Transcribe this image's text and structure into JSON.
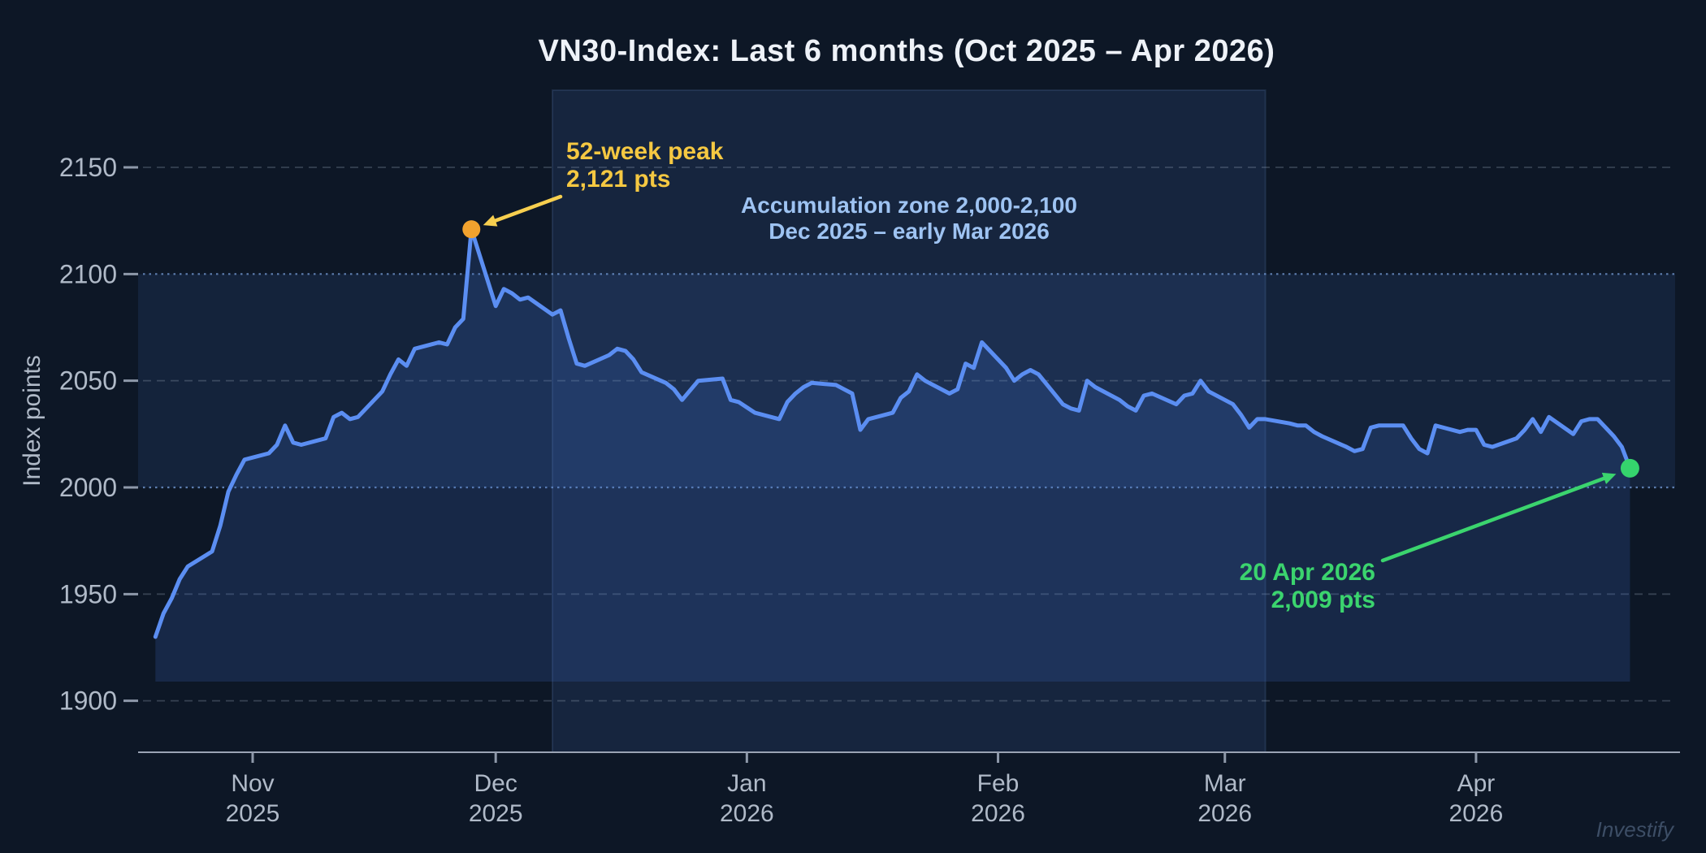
{
  "title": "VN30-Index: Last 6 months (Oct 2025 – Apr 2026)",
  "watermark": "Investify",
  "colors": {
    "background": "#0d1726",
    "line": "#5b8ef2",
    "area_fill": "rgba(58,104,190,0.22)",
    "hband_fill": "rgba(72,118,200,0.13)",
    "vband_fill": "rgba(72,118,200,0.15)",
    "vband_stroke": "rgba(120,160,230,0.15)",
    "grid_dashed": "rgba(162,175,194,0.28)",
    "grid_dotted": "rgba(120,160,220,0.75)",
    "axis_spine": "#9aa3b4",
    "tick_mark": "#8e99aa",
    "tick_label": "#b0bac8",
    "title_color": "#eef2f8",
    "peak_text": "#f5c842",
    "peak_dot": "#f2a22e",
    "peak_arrow": "#f7cf4f",
    "latest_text": "#3bd46e",
    "latest_dot": "#35d46d",
    "zone_text": "#9ec3f2",
    "watermark_color": "#3d4e66"
  },
  "chart_data": {
    "type": "area",
    "title": "VN30-Index: Last 6 months (Oct 2025 – Apr 2026)",
    "xlabel": "",
    "ylabel": "Index points",
    "ylim": [
      1876,
      2186
    ],
    "x_range": [
      "2025-10-20",
      "2026-04-20"
    ],
    "y_ticks": [
      1900,
      1950,
      2000,
      2050,
      2100,
      2150
    ],
    "x_ticks": [
      {
        "month": "Nov",
        "year": "2025",
        "date": "2025-11-01"
      },
      {
        "month": "Dec",
        "year": "2025",
        "date": "2025-12-01"
      },
      {
        "month": "Jan",
        "year": "2026",
        "date": "2026-01-01"
      },
      {
        "month": "Feb",
        "year": "2026",
        "date": "2026-02-01"
      },
      {
        "month": "Mar",
        "year": "2026",
        "date": "2026-03-01"
      },
      {
        "month": "Apr",
        "year": "2026",
        "date": "2026-04-01"
      }
    ],
    "grid": "horizontal; dashed gray at 1900/1950/2050/2150, dotted blue at 2000/2100",
    "legend": "none",
    "area_baseline": 1909,
    "highlight_hband": {
      "from": 2000,
      "to": 2100
    },
    "highlight_vband": {
      "from": "2025-12-08",
      "to": "2026-03-06"
    },
    "annotations": {
      "peak": {
        "line1": "52-week peak",
        "line2": "2,121 pts",
        "date": "2025-11-28",
        "value": 2121
      },
      "latest": {
        "line1": "20 Apr 2026",
        "line2": "2,009 pts",
        "date": "2026-04-20",
        "value": 2009
      },
      "zone": {
        "line1": "Accumulation zone 2,000-2,100",
        "line2": "Dec 2025 – early Mar 2026"
      }
    },
    "series": [
      {
        "name": "VN30-Index",
        "points": [
          [
            "2025-10-20",
            1930
          ],
          [
            "2025-10-21",
            1941
          ],
          [
            "2025-10-22",
            1948
          ],
          [
            "2025-10-23",
            1957
          ],
          [
            "2025-10-24",
            1963
          ],
          [
            "2025-10-27",
            1970
          ],
          [
            "2025-10-28",
            1982
          ],
          [
            "2025-10-29",
            1998
          ],
          [
            "2025-10-30",
            2006
          ],
          [
            "2025-10-31",
            2013
          ],
          [
            "2025-11-03",
            2016
          ],
          [
            "2025-11-04",
            2020
          ],
          [
            "2025-11-05",
            2029
          ],
          [
            "2025-11-06",
            2021
          ],
          [
            "2025-11-07",
            2020
          ],
          [
            "2025-11-10",
            2023
          ],
          [
            "2025-11-11",
            2033
          ],
          [
            "2025-11-12",
            2035
          ],
          [
            "2025-11-13",
            2032
          ],
          [
            "2025-11-14",
            2033
          ],
          [
            "2025-11-17",
            2045
          ],
          [
            "2025-11-18",
            2053
          ],
          [
            "2025-11-19",
            2060
          ],
          [
            "2025-11-20",
            2057
          ],
          [
            "2025-11-21",
            2065
          ],
          [
            "2025-11-24",
            2068
          ],
          [
            "2025-11-25",
            2067
          ],
          [
            "2025-11-26",
            2075
          ],
          [
            "2025-11-27",
            2079
          ],
          [
            "2025-11-28",
            2121
          ],
          [
            "2025-12-01",
            2085
          ],
          [
            "2025-12-02",
            2093
          ],
          [
            "2025-12-03",
            2091
          ],
          [
            "2025-12-04",
            2088
          ],
          [
            "2025-12-05",
            2089
          ],
          [
            "2025-12-08",
            2081
          ],
          [
            "2025-12-09",
            2083
          ],
          [
            "2025-12-10",
            2070
          ],
          [
            "2025-12-11",
            2058
          ],
          [
            "2025-12-12",
            2057
          ],
          [
            "2025-12-15",
            2062
          ],
          [
            "2025-12-16",
            2065
          ],
          [
            "2025-12-17",
            2064
          ],
          [
            "2025-12-18",
            2060
          ],
          [
            "2025-12-19",
            2054
          ],
          [
            "2025-12-22",
            2049
          ],
          [
            "2025-12-23",
            2046
          ],
          [
            "2025-12-24",
            2041
          ],
          [
            "2025-12-26",
            2050
          ],
          [
            "2025-12-29",
            2051
          ],
          [
            "2025-12-30",
            2041
          ],
          [
            "2025-12-31",
            2040
          ],
          [
            "2026-01-02",
            2035
          ],
          [
            "2026-01-05",
            2032
          ],
          [
            "2026-01-06",
            2040
          ],
          [
            "2026-01-07",
            2044
          ],
          [
            "2026-01-08",
            2047
          ],
          [
            "2026-01-09",
            2049
          ],
          [
            "2026-01-12",
            2048
          ],
          [
            "2026-01-13",
            2046
          ],
          [
            "2026-01-14",
            2044
          ],
          [
            "2026-01-15",
            2027
          ],
          [
            "2026-01-16",
            2032
          ],
          [
            "2026-01-19",
            2035
          ],
          [
            "2026-01-20",
            2042
          ],
          [
            "2026-01-21",
            2045
          ],
          [
            "2026-01-22",
            2053
          ],
          [
            "2026-01-23",
            2050
          ],
          [
            "2026-01-26",
            2044
          ],
          [
            "2026-01-27",
            2046
          ],
          [
            "2026-01-28",
            2058
          ],
          [
            "2026-01-29",
            2056
          ],
          [
            "2026-01-30",
            2068
          ],
          [
            "2026-02-02",
            2056
          ],
          [
            "2026-02-03",
            2050
          ],
          [
            "2026-02-04",
            2053
          ],
          [
            "2026-02-05",
            2055
          ],
          [
            "2026-02-06",
            2053
          ],
          [
            "2026-02-09",
            2039
          ],
          [
            "2026-02-10",
            2037
          ],
          [
            "2026-02-11",
            2036
          ],
          [
            "2026-02-12",
            2050
          ],
          [
            "2026-02-13",
            2047
          ],
          [
            "2026-02-16",
            2041
          ],
          [
            "2026-02-17",
            2038
          ],
          [
            "2026-02-18",
            2036
          ],
          [
            "2026-02-19",
            2043
          ],
          [
            "2026-02-20",
            2044
          ],
          [
            "2026-02-23",
            2039
          ],
          [
            "2026-02-24",
            2043
          ],
          [
            "2026-02-25",
            2044
          ],
          [
            "2026-02-26",
            2050
          ],
          [
            "2026-02-27",
            2045
          ],
          [
            "2026-03-02",
            2039
          ],
          [
            "2026-03-03",
            2034
          ],
          [
            "2026-03-04",
            2028
          ],
          [
            "2026-03-05",
            2032
          ],
          [
            "2026-03-06",
            2032
          ],
          [
            "2026-03-09",
            2030
          ],
          [
            "2026-03-10",
            2029
          ],
          [
            "2026-03-11",
            2029
          ],
          [
            "2026-03-12",
            2026
          ],
          [
            "2026-03-13",
            2024
          ],
          [
            "2026-03-16",
            2019
          ],
          [
            "2026-03-17",
            2017
          ],
          [
            "2026-03-18",
            2018
          ],
          [
            "2026-03-19",
            2028
          ],
          [
            "2026-03-20",
            2029
          ],
          [
            "2026-03-23",
            2029
          ],
          [
            "2026-03-24",
            2023
          ],
          [
            "2026-03-25",
            2018
          ],
          [
            "2026-03-26",
            2016
          ],
          [
            "2026-03-27",
            2029
          ],
          [
            "2026-03-30",
            2026
          ],
          [
            "2026-03-31",
            2027
          ],
          [
            "2026-04-01",
            2027
          ],
          [
            "2026-04-02",
            2020
          ],
          [
            "2026-04-03",
            2019
          ],
          [
            "2026-04-06",
            2023
          ],
          [
            "2026-04-07",
            2027
          ],
          [
            "2026-04-08",
            2032
          ],
          [
            "2026-04-09",
            2026
          ],
          [
            "2026-04-10",
            2033
          ],
          [
            "2026-04-13",
            2025
          ],
          [
            "2026-04-14",
            2031
          ],
          [
            "2026-04-15",
            2032
          ],
          [
            "2026-04-16",
            2032
          ],
          [
            "2026-04-17",
            2028
          ],
          [
            "2026-04-18",
            2024
          ],
          [
            "2026-04-19",
            2019
          ],
          [
            "2026-04-20",
            2009
          ]
        ]
      }
    ]
  }
}
